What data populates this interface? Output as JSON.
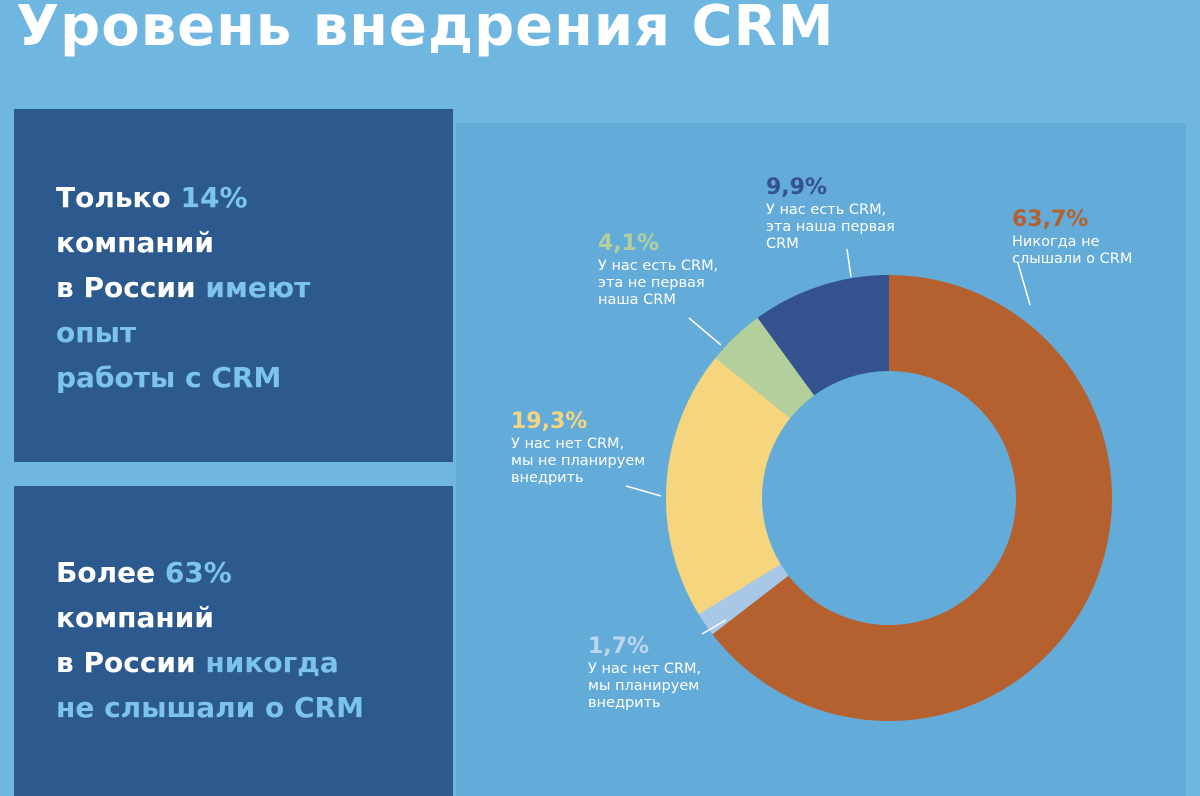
{
  "title": "Уровень внедрения CRM",
  "cards": [
    {
      "lines": [
        [
          {
            "t": "Только ",
            "hl": false
          },
          {
            "t": "14%",
            "hl": true
          }
        ],
        [
          {
            "t": "компаний",
            "hl": false
          }
        ],
        [
          {
            "t": "в России ",
            "hl": false
          },
          {
            "t": "имеют",
            "hl": true
          }
        ],
        [
          {
            "t": "опыт",
            "hl": true
          }
        ],
        [
          {
            "t": "работы с CRM",
            "hl": true
          }
        ]
      ]
    },
    {
      "lines": [
        [
          {
            "t": "Более ",
            "hl": false
          },
          {
            "t": "63%",
            "hl": true
          }
        ],
        [
          {
            "t": "компаний",
            "hl": false
          }
        ],
        [
          {
            "t": "в России ",
            "hl": false
          },
          {
            "t": "никогда",
            "hl": true
          }
        ],
        [
          {
            "t": "не слышали о CRM",
            "hl": true
          }
        ]
      ]
    }
  ],
  "chart_data": {
    "type": "pie",
    "subtype": "donut",
    "start_angle_deg": 0,
    "direction": "clockwise",
    "slices": [
      {
        "value": 63.7,
        "label": "63,7%",
        "desc": [
          "Никогда не",
          "слышали о CRM"
        ],
        "color": "#b5612f",
        "label_color": "#b5612f"
      },
      {
        "value": 1.7,
        "label": "1,7%",
        "desc": [
          "У нас нет CRM,",
          "мы планируем",
          "внедрить"
        ],
        "color": "#a9c8e8",
        "label_color": "#bcd6ee"
      },
      {
        "value": 19.3,
        "label": "19,3%",
        "desc": [
          "У нас нет CRM,",
          "мы не планируем",
          "внедрить"
        ],
        "color": "#f5d57e",
        "label_color": "#f5d57e"
      },
      {
        "value": 4.1,
        "label": "4,1%",
        "desc": [
          "У нас есть CRM,",
          "эта не первая",
          "наша CRM"
        ],
        "color": "#b3d09c",
        "label_color": "#b3d09c"
      },
      {
        "value": 9.9,
        "label": "9,9%",
        "desc": [
          "У нас есть CRM,",
          "эта наша первая",
          "CRM"
        ],
        "color": "#34528d",
        "label_color": "#34528d"
      }
    ]
  }
}
